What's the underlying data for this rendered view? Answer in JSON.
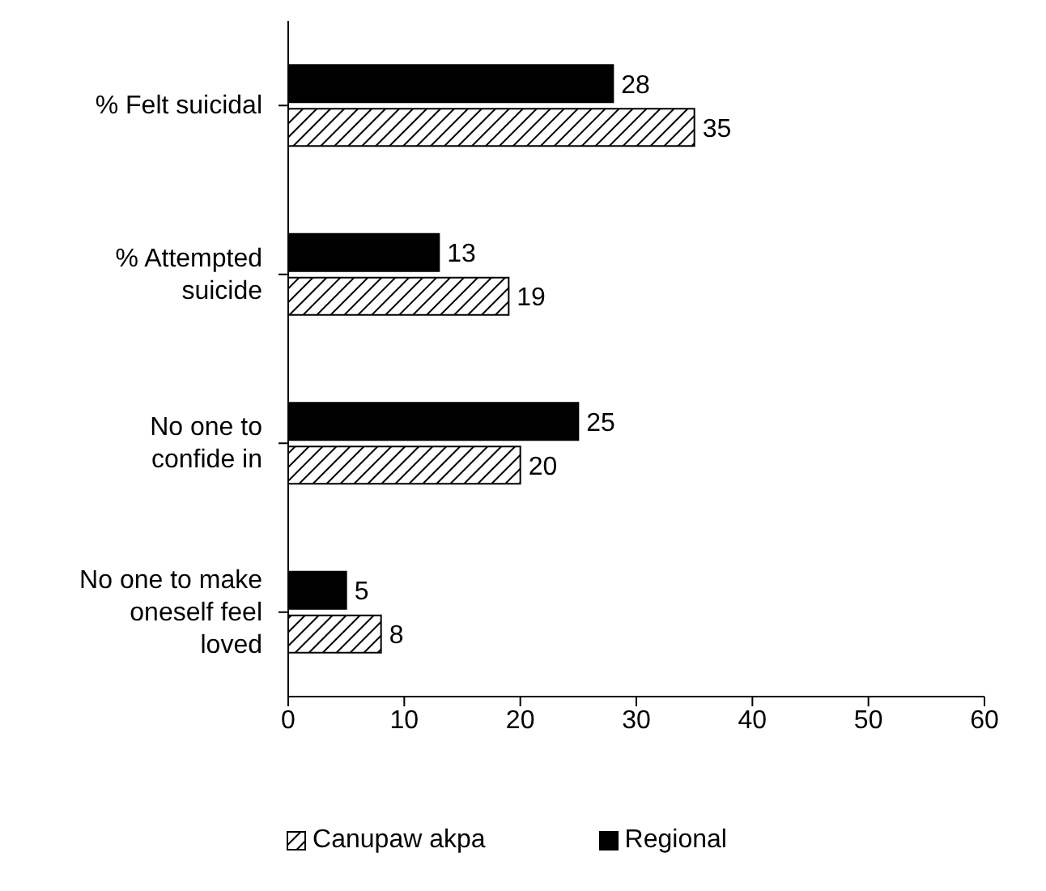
{
  "chart_data": {
    "type": "bar",
    "orientation": "horizontal",
    "categories": [
      "% Felt suicidal",
      "% Attempted suicide",
      "No one to confide in",
      "No one to make oneself feel loved"
    ],
    "series": [
      {
        "name": "Regional",
        "color": "#000000",
        "values": [
          28,
          13,
          25,
          5
        ]
      },
      {
        "name": "Canupaw akpa",
        "color": "#000000",
        "values": [
          35,
          19,
          20,
          8
        ]
      }
    ],
    "xlim": [
      0,
      60
    ],
    "xticks": [
      0,
      10,
      20,
      30,
      40,
      50,
      60
    ],
    "data_labels": true,
    "grid": false,
    "legend": "bottom"
  }
}
